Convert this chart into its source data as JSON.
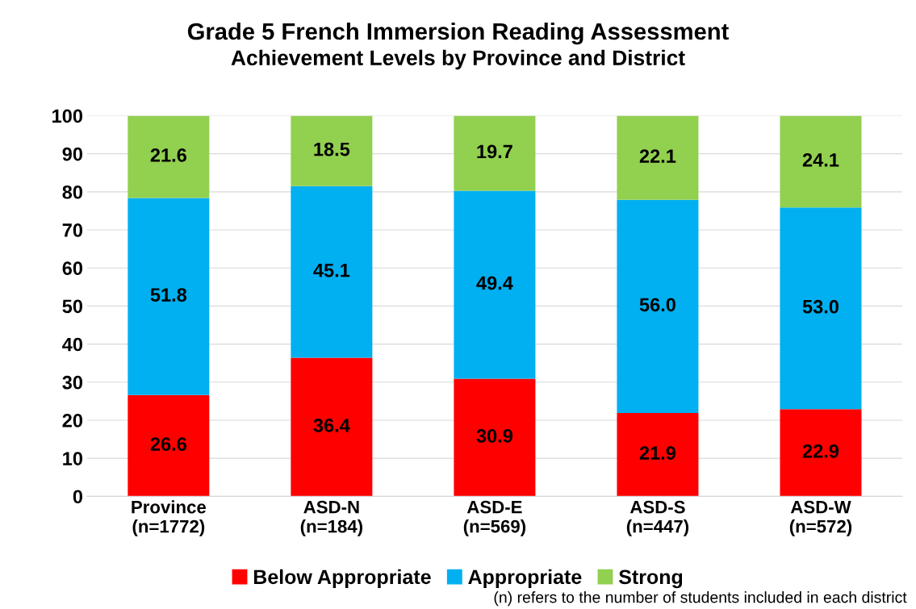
{
  "chart_data": {
    "type": "bar",
    "title": "Grade 5 French Immersion Reading Assessment",
    "subtitle": "Achievement Levels by Province and District",
    "categories": [
      "Province\n(n=1772)",
      "ASD-N\n(n=184)",
      "ASD-E\n(n=569)",
      "ASD-S\n(n=447)",
      "ASD-W\n(n=572)"
    ],
    "series": [
      {
        "name": "Below Appropriate",
        "color": "#ff0000",
        "values": [
          26.6,
          36.4,
          30.9,
          21.9,
          22.9
        ]
      },
      {
        "name": "Appropriate",
        "color": "#00b0f0",
        "values": [
          51.8,
          45.1,
          49.4,
          56.0,
          53.0
        ]
      },
      {
        "name": "Strong",
        "color": "#92d050",
        "values": [
          21.6,
          18.5,
          19.7,
          22.1,
          24.1
        ]
      }
    ],
    "value_labels": [
      [
        "26.6",
        "36.4",
        "30.9",
        "21.9",
        "22.9"
      ],
      [
        "51.8",
        "45.1",
        "49.4",
        "56.0",
        "53.0"
      ],
      [
        "21.6",
        "18.5",
        "19.7",
        "22.1",
        "24.1"
      ]
    ],
    "stacked": true,
    "ylim": [
      0,
      100
    ],
    "yticks": [
      0,
      10,
      20,
      30,
      40,
      50,
      60,
      70,
      80,
      90,
      100
    ],
    "grid": "y",
    "legend": "bottom",
    "annotations": [
      "(n) refers to the number of students included in each district"
    ]
  }
}
